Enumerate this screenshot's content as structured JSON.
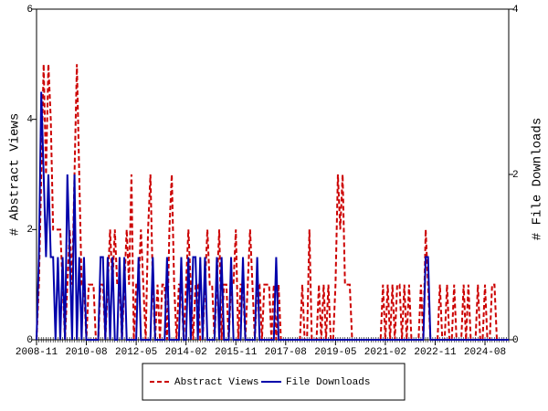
{
  "chart_data": {
    "type": "line",
    "x": [
      "2008-11",
      "2008-12",
      "2009-01",
      "2009-02",
      "2009-03",
      "2009-04",
      "2009-05",
      "2009-06",
      "2009-07",
      "2009-08",
      "2009-09",
      "2009-10",
      "2009-11",
      "2009-12",
      "2010-01",
      "2010-02",
      "2010-03",
      "2010-04",
      "2010-05",
      "2010-06",
      "2010-07",
      "2010-08",
      "2010-09",
      "2010-10",
      "2010-11",
      "2010-12",
      "2011-01",
      "2011-02",
      "2011-03",
      "2011-04",
      "2011-05",
      "2011-06",
      "2011-07",
      "2011-08",
      "2011-09",
      "2011-10",
      "2011-11",
      "2011-12",
      "2012-01",
      "2012-02",
      "2012-03",
      "2012-04",
      "2012-05",
      "2012-06",
      "2012-07",
      "2012-08",
      "2012-09",
      "2012-10",
      "2012-11",
      "2012-12",
      "2013-01",
      "2013-02",
      "2013-03",
      "2013-04",
      "2013-05",
      "2013-06",
      "2013-07",
      "2013-08",
      "2013-09",
      "2013-10",
      "2013-11",
      "2013-12",
      "2014-01",
      "2014-02",
      "2014-03",
      "2014-04",
      "2014-05",
      "2014-06",
      "2014-07",
      "2014-08",
      "2014-09",
      "2014-10",
      "2014-11",
      "2014-12",
      "2015-01",
      "2015-02",
      "2015-03",
      "2015-04",
      "2015-05",
      "2015-06",
      "2015-07",
      "2015-08",
      "2015-09",
      "2015-10",
      "2015-11",
      "2015-12",
      "2016-01",
      "2016-02",
      "2016-03",
      "2016-04",
      "2016-05",
      "2016-06",
      "2016-07",
      "2016-08",
      "2016-09",
      "2016-10",
      "2016-11",
      "2016-12",
      "2017-01",
      "2017-02",
      "2017-03",
      "2017-04",
      "2017-05",
      "2017-06",
      "2017-07",
      "2017-08",
      "2017-09",
      "2017-10",
      "2017-11",
      "2017-12",
      "2018-01",
      "2018-02",
      "2018-03",
      "2018-04",
      "2018-05",
      "2018-06",
      "2018-07",
      "2018-08",
      "2018-09",
      "2018-10",
      "2018-11",
      "2018-12",
      "2019-01",
      "2019-02",
      "2019-03",
      "2019-04",
      "2019-05",
      "2019-06",
      "2019-07",
      "2019-08",
      "2019-09",
      "2019-10",
      "2019-11",
      "2019-12",
      "2020-01",
      "2020-02",
      "2020-03",
      "2020-04",
      "2020-05",
      "2020-06",
      "2020-07",
      "2020-08",
      "2020-09",
      "2020-10",
      "2020-11",
      "2020-12",
      "2021-01",
      "2021-02",
      "2021-03",
      "2021-04",
      "2021-05",
      "2021-06",
      "2021-07",
      "2021-08",
      "2021-09",
      "2021-10",
      "2021-11",
      "2021-12",
      "2022-01",
      "2022-02",
      "2022-03",
      "2022-04",
      "2022-05",
      "2022-06",
      "2022-07",
      "2022-08",
      "2022-09",
      "2022-10",
      "2022-11",
      "2022-12",
      "2023-01",
      "2023-02",
      "2023-03",
      "2023-04",
      "2023-05",
      "2023-06",
      "2023-07",
      "2023-08",
      "2023-09",
      "2023-10",
      "2023-11",
      "2023-12",
      "2024-01",
      "2024-02",
      "2024-03",
      "2024-04",
      "2024-05",
      "2024-06",
      "2024-07",
      "2024-08",
      "2024-09",
      "2024-10",
      "2024-11",
      "2024-12",
      "2025-01",
      "2025-02",
      "2025-03",
      "2025-04",
      "2025-05",
      "2025-06"
    ],
    "series": [
      {
        "name": "Abstract Views",
        "color": "#cc0000",
        "dash": true,
        "values": [
          0,
          1,
          3,
          5,
          3,
          5,
          4,
          2,
          2,
          2,
          2,
          1,
          0,
          1,
          2,
          1,
          3,
          5,
          3,
          1,
          1,
          0,
          1,
          1,
          1,
          0,
          0,
          1,
          1,
          0,
          1,
          2,
          1,
          2,
          1,
          1,
          0,
          1,
          2,
          1,
          3,
          0,
          1,
          1,
          2,
          1,
          0,
          2,
          3,
          1,
          0,
          1,
          0,
          1,
          1,
          0,
          2,
          3,
          1,
          0,
          1,
          1,
          0,
          1,
          2,
          1,
          0,
          1,
          1,
          0,
          0,
          1,
          2,
          1,
          1,
          0,
          1,
          2,
          0,
          1,
          1,
          0,
          1,
          1,
          2,
          0,
          1,
          1,
          0,
          1,
          2,
          1,
          0,
          1,
          1,
          0,
          1,
          1,
          1,
          0,
          1,
          0,
          1,
          0,
          0,
          0,
          0,
          0,
          0,
          0,
          0,
          0,
          1,
          0,
          0,
          2,
          0,
          0,
          0,
          1,
          0,
          1,
          0,
          1,
          0,
          0,
          1,
          3,
          2,
          3,
          1,
          1,
          1,
          0,
          0,
          0,
          0,
          0,
          0,
          0,
          0,
          0,
          0,
          0,
          0,
          0,
          1,
          0,
          1,
          0,
          1,
          0,
          1,
          1,
          0,
          1,
          0,
          1,
          0,
          0,
          0,
          0,
          1,
          0,
          2,
          1,
          0,
          0,
          0,
          0,
          1,
          0,
          0,
          1,
          0,
          0,
          1,
          0,
          0,
          0,
          1,
          0,
          1,
          0,
          0,
          0,
          1,
          0,
          0,
          1,
          0,
          0,
          1,
          1,
          0,
          0,
          0,
          0,
          0,
          0
        ]
      },
      {
        "name": "File Downloads",
        "color": "#0000aa",
        "axis": "y2",
        "values": [
          0,
          1,
          3,
          2,
          1,
          2,
          1,
          1,
          0,
          1,
          0,
          1,
          0,
          2,
          1,
          0,
          2,
          0,
          1,
          0,
          1,
          0,
          0,
          0,
          0,
          0,
          0,
          1,
          1,
          0,
          1,
          0,
          1,
          0,
          0,
          1,
          0,
          1,
          0,
          0,
          0,
          0,
          0,
          1,
          0,
          0,
          0,
          0,
          0,
          1,
          0,
          0,
          0,
          0,
          0,
          1,
          0,
          0,
          0,
          0,
          0,
          1,
          0,
          0,
          1,
          0,
          1,
          1,
          0,
          1,
          0,
          1,
          0,
          0,
          0,
          0,
          1,
          0,
          1,
          0,
          0,
          0,
          1,
          0,
          0,
          0,
          0,
          1,
          0,
          0,
          0,
          0,
          0,
          1,
          0,
          0,
          0,
          0,
          0,
          0,
          0,
          1,
          0,
          0,
          0,
          0,
          0,
          0,
          0,
          0,
          0,
          0,
          0,
          0,
          0,
          0,
          0,
          0,
          0,
          0,
          0,
          0,
          0,
          0,
          0,
          0,
          0,
          0,
          0,
          0,
          0,
          0,
          0,
          0,
          0,
          0,
          0,
          0,
          0,
          0,
          0,
          0,
          0,
          0,
          0,
          0,
          0,
          0,
          0,
          0,
          0,
          0,
          0,
          0,
          0,
          0,
          0,
          0,
          0,
          0,
          0,
          0,
          0,
          0,
          1,
          1,
          0,
          0,
          0,
          0,
          0,
          0,
          0,
          0,
          0,
          0,
          0,
          0,
          0,
          0,
          0,
          0,
          0,
          0,
          0,
          0,
          0,
          0,
          0,
          0,
          0,
          0,
          0,
          0,
          0,
          0,
          0,
          0,
          0,
          0
        ]
      }
    ],
    "xticks": [
      "2008-11",
      "2010-08",
      "2012-05",
      "2014-02",
      "2015-11",
      "2017-08",
      "2019-05",
      "2021-02",
      "2022-11",
      "2024-08"
    ],
    "ylabel": "# Abstract Views",
    "y2label": "# File Downloads",
    "ylim": [
      0,
      6
    ],
    "yticks": [
      0,
      2,
      4,
      6
    ],
    "y2lim": [
      0,
      4
    ],
    "y2ticks": [
      0,
      2,
      4
    ],
    "legend": "bottom"
  }
}
